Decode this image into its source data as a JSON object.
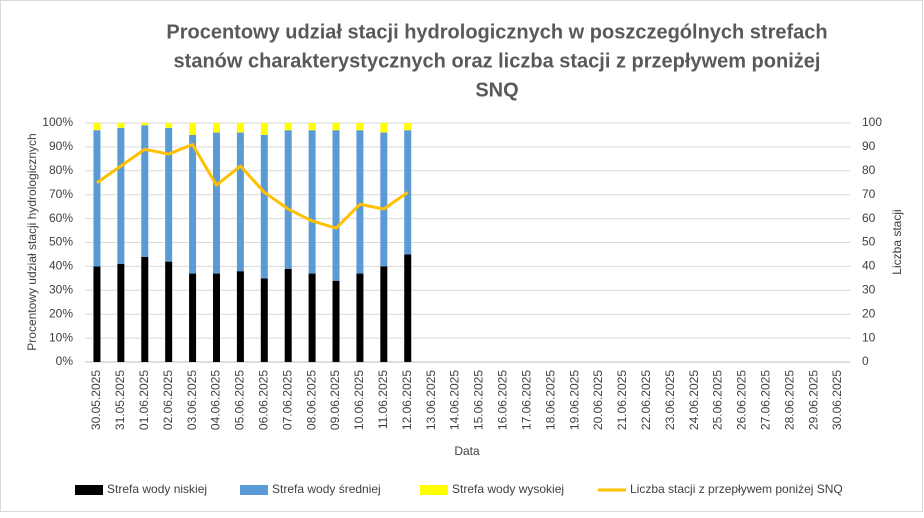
{
  "chart_data": {
    "type": "bar",
    "title": [
      "Procentowy udział stacji hydrologicznych w poszczególnych strefach",
      "stanów charakterystycznych oraz liczba stacji z przepływem poniżej",
      "SNQ"
    ],
    "x_label": "Data",
    "y_label": "Procentowy udział stacji hydrologicznych",
    "y2_label": "Liczba stacji",
    "stacked": true,
    "grid": true,
    "legend": "bottom",
    "categories": [
      "30.05.2025",
      "31.05.2025",
      "01.06.2025",
      "02.06.2025",
      "03.06.2025",
      "04.06.2025",
      "05.06.2025",
      "06.06.2025",
      "07.06.2025",
      "08.06.2025",
      "09.06.2025",
      "10.06.2025",
      "11.06.2025",
      "12.06.2025",
      "13.06.2025",
      "14.06.2025",
      "15.06.2025",
      "16.06.2025",
      "17.06.2025",
      "18.06.2025",
      "19.06.2025",
      "20.06.2025",
      "21.06.2025",
      "22.06.2025",
      "23.06.2025",
      "24.06.2025",
      "25.06.2025",
      "26.06.2025",
      "27.06.2025",
      "28.06.2025",
      "29.06.2025",
      "30.06.2025"
    ],
    "series": [
      {
        "name": "Strefa wody niskiej",
        "color": "#000000",
        "type": "bar",
        "values": [
          40,
          41,
          44,
          42,
          37,
          37,
          38,
          35,
          39,
          37,
          34,
          37,
          40,
          45,
          null,
          null,
          null,
          null,
          null,
          null,
          null,
          null,
          null,
          null,
          null,
          null,
          null,
          null,
          null,
          null,
          null,
          null
        ]
      },
      {
        "name": "Strefa wody średniej",
        "color": "#5b9bd5",
        "type": "bar",
        "values": [
          57,
          57,
          55,
          56,
          58,
          59,
          58,
          60,
          58,
          60,
          63,
          60,
          56,
          52,
          null,
          null,
          null,
          null,
          null,
          null,
          null,
          null,
          null,
          null,
          null,
          null,
          null,
          null,
          null,
          null,
          null,
          null
        ]
      },
      {
        "name": "Strefa wody wysokiej",
        "color": "#ffff00",
        "type": "bar",
        "values": [
          3,
          2,
          1,
          2,
          5,
          4,
          4,
          5,
          3,
          3,
          3,
          3,
          4,
          3,
          null,
          null,
          null,
          null,
          null,
          null,
          null,
          null,
          null,
          null,
          null,
          null,
          null,
          null,
          null,
          null,
          null,
          null
        ]
      },
      {
        "name": "Liczba stacji z przepływem poniżej SNQ",
        "color": "#ffc000",
        "type": "line",
        "axis": "y2",
        "values": [
          75,
          82,
          89,
          87,
          91,
          74,
          82,
          71,
          64,
          59,
          56,
          66,
          64,
          71,
          null,
          null,
          null,
          null,
          null,
          null,
          null,
          null,
          null,
          null,
          null,
          null,
          null,
          null,
          null,
          null,
          null,
          null
        ]
      }
    ],
    "ylim": [
      0,
      100
    ],
    "yticks": [
      {
        "value": 0,
        "label": "0%"
      },
      {
        "value": 10,
        "label": "10%"
      },
      {
        "value": 20,
        "label": "20%"
      },
      {
        "value": 30,
        "label": "30%"
      },
      {
        "value": 40,
        "label": "40%"
      },
      {
        "value": 50,
        "label": "50%"
      },
      {
        "value": 60,
        "label": "60%"
      },
      {
        "value": 70,
        "label": "70%"
      },
      {
        "value": 80,
        "label": "80%"
      },
      {
        "value": 90,
        "label": "90%"
      },
      {
        "value": 100,
        "label": "100%"
      }
    ],
    "y2lim": [
      0,
      100
    ],
    "y2ticks": [
      0,
      10,
      20,
      30,
      40,
      50,
      60,
      70,
      80,
      90,
      100
    ]
  }
}
